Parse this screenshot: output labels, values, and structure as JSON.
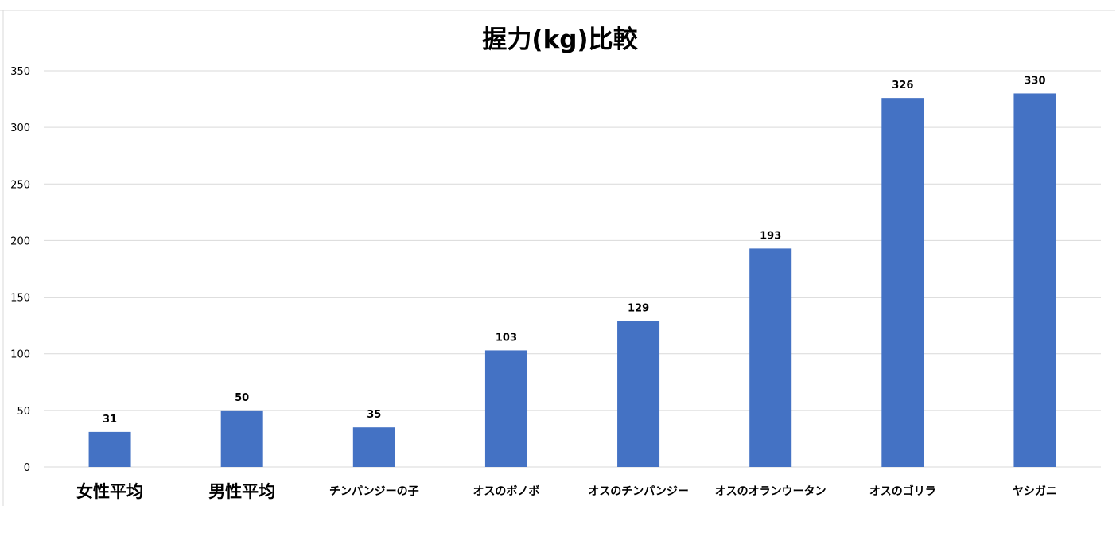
{
  "chart_data": {
    "type": "bar",
    "title": "握力(kg)比較",
    "xlabel": "",
    "ylabel": "",
    "ylim": [
      0,
      350
    ],
    "yticks": [
      0,
      50,
      100,
      150,
      200,
      250,
      300,
      350
    ],
    "grid": true,
    "legend": "none",
    "categories": [
      "女性平均",
      "男性平均",
      "チンパンジーの子",
      "オスのボノボ",
      "オスのチンパンジー",
      "オスのオランウータン",
      "オスのゴリラ",
      "ヤシガニ"
    ],
    "values": [
      31,
      50,
      35,
      103,
      129,
      193,
      326,
      330
    ],
    "bar_color": "#4472c4"
  }
}
